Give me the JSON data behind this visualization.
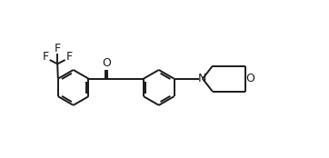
{
  "bg_color": "#ffffff",
  "line_color": "#1a1a1a",
  "line_width": 1.4,
  "font_size": 9.0,
  "fig_width": 3.62,
  "fig_height": 1.74,
  "dpi": 100,
  "xlim": [
    0,
    11.5
  ],
  "ylim": [
    0,
    5.2
  ]
}
